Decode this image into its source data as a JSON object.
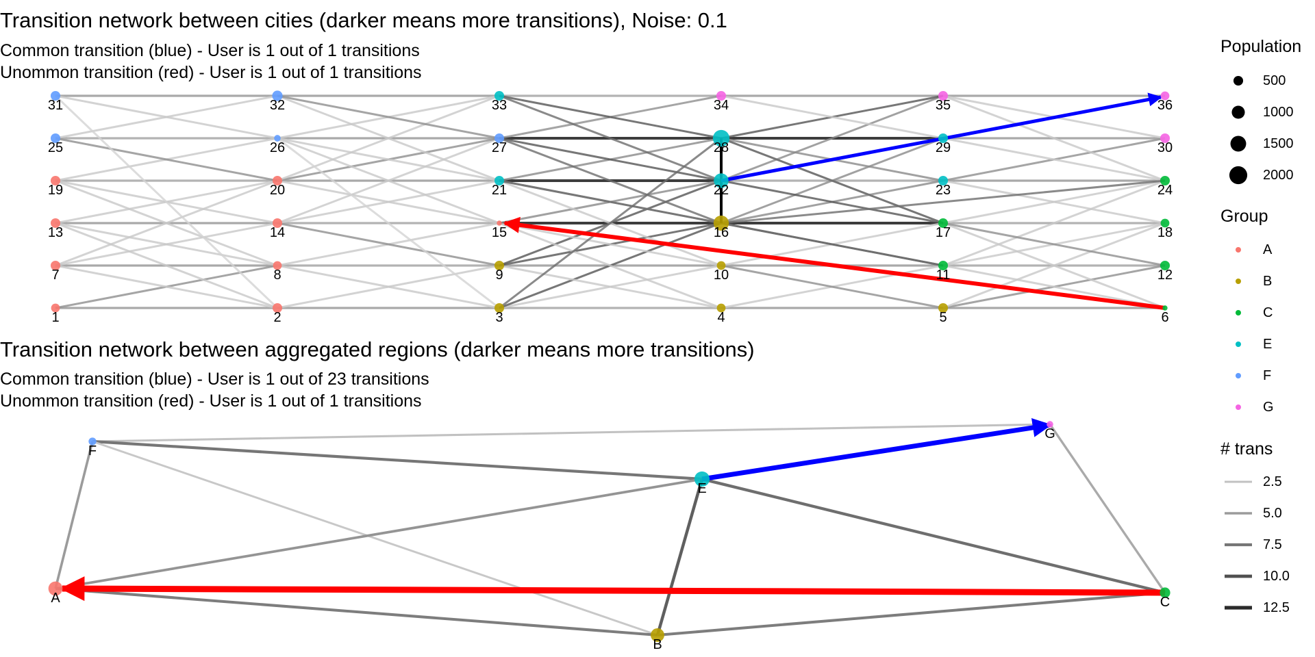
{
  "top": {
    "title": "Transition network between cities (darker means more transitions), Noise: 0.1",
    "subtitle_common": "Common transition (blue) - User is 1 out of 1 transitions",
    "subtitle_uncommon": "Unommon transition (red) - User is 1 out of 1 transitions"
  },
  "bottom": {
    "title": "Transition network between aggregated regions (darker means more transitions)",
    "subtitle_common": "Common transition (blue) - User is 1 out of 23 transitions",
    "subtitle_uncommon": "Unommon transition (red) - User is 1 out of 1 transitions"
  },
  "legend": {
    "population": {
      "title": "Population",
      "items": [
        "500",
        "1000",
        "1500",
        "2000"
      ],
      "sizes": [
        500,
        1000,
        1500,
        2000
      ]
    },
    "group": {
      "title": "Group",
      "items": [
        "A",
        "B",
        "C",
        "E",
        "F",
        "G"
      ]
    },
    "trans": {
      "title": "# trans",
      "items": [
        "2.5",
        "5.0",
        "7.5",
        "10.0",
        "12.5"
      ],
      "values": [
        2.5,
        5.0,
        7.5,
        10.0,
        12.5
      ]
    }
  },
  "colors": {
    "A": "#F8766D",
    "B": "#B79F00",
    "C": "#00BA38",
    "E": "#00BFC4",
    "F": "#619CFF",
    "G": "#F564E3",
    "common": "#0000FF",
    "uncommon": "#FF0000"
  },
  "city_network": {
    "cities": [
      {
        "id": "1",
        "group": "A",
        "pop": 400
      },
      {
        "id": "2",
        "group": "A",
        "pop": 500
      },
      {
        "id": "3",
        "group": "B",
        "pop": 500
      },
      {
        "id": "4",
        "group": "B",
        "pop": 400
      },
      {
        "id": "5",
        "group": "B",
        "pop": 500
      },
      {
        "id": "6",
        "group": "C",
        "pop": 100
      },
      {
        "id": "7",
        "group": "A",
        "pop": 500
      },
      {
        "id": "8",
        "group": "A",
        "pop": 400
      },
      {
        "id": "9",
        "group": "B",
        "pop": 500
      },
      {
        "id": "10",
        "group": "B",
        "pop": 400
      },
      {
        "id": "11",
        "group": "C",
        "pop": 500
      },
      {
        "id": "12",
        "group": "C",
        "pop": 500
      },
      {
        "id": "13",
        "group": "A",
        "pop": 500
      },
      {
        "id": "14",
        "group": "A",
        "pop": 500
      },
      {
        "id": "15",
        "group": "A",
        "pop": 100
      },
      {
        "id": "16",
        "group": "B",
        "pop": 1400
      },
      {
        "id": "17",
        "group": "C",
        "pop": 500
      },
      {
        "id": "18",
        "group": "C",
        "pop": 400
      },
      {
        "id": "19",
        "group": "A",
        "pop": 500
      },
      {
        "id": "20",
        "group": "A",
        "pop": 500
      },
      {
        "id": "21",
        "group": "E",
        "pop": 500
      },
      {
        "id": "22",
        "group": "E",
        "pop": 1300
      },
      {
        "id": "23",
        "group": "E",
        "pop": 500
      },
      {
        "id": "24",
        "group": "C",
        "pop": 500
      },
      {
        "id": "25",
        "group": "F",
        "pop": 500
      },
      {
        "id": "26",
        "group": "F",
        "pop": 200
      },
      {
        "id": "27",
        "group": "F",
        "pop": 500
      },
      {
        "id": "28",
        "group": "E",
        "pop": 1700
      },
      {
        "id": "29",
        "group": "E",
        "pop": 500
      },
      {
        "id": "30",
        "group": "G",
        "pop": 500
      },
      {
        "id": "31",
        "group": "F",
        "pop": 500
      },
      {
        "id": "32",
        "group": "F",
        "pop": 600
      },
      {
        "id": "33",
        "group": "E",
        "pop": 500
      },
      {
        "id": "34",
        "group": "G",
        "pop": 500
      },
      {
        "id": "35",
        "group": "G",
        "pop": 500
      },
      {
        "id": "36",
        "group": "G",
        "pop": 400
      }
    ],
    "highlight_common": {
      "from": "22",
      "to": "36"
    },
    "highlight_uncommon": {
      "from": "6",
      "to": "15"
    }
  },
  "region_network": {
    "regions": [
      {
        "id": "A",
        "group": "A",
        "pop": 1200
      },
      {
        "id": "B",
        "group": "B",
        "pop": 1100
      },
      {
        "id": "C",
        "group": "C",
        "pop": 600
      },
      {
        "id": "E",
        "group": "E",
        "pop": 1400
      },
      {
        "id": "F",
        "group": "F",
        "pop": 300
      },
      {
        "id": "G",
        "group": "G",
        "pop": 200
      }
    ],
    "edges": [
      {
        "from": "F",
        "to": "G",
        "trans": 2.5
      },
      {
        "from": "F",
        "to": "E",
        "trans": 7.5
      },
      {
        "from": "F",
        "to": "B",
        "trans": 2
      },
      {
        "from": "F",
        "to": "A",
        "trans": 5
      },
      {
        "from": "A",
        "to": "E",
        "trans": 5.5
      },
      {
        "from": "A",
        "to": "B",
        "trans": 7
      },
      {
        "from": "E",
        "to": "B",
        "trans": 9
      },
      {
        "from": "E",
        "to": "C",
        "trans": 8
      },
      {
        "from": "B",
        "to": "C",
        "trans": 7
      },
      {
        "from": "G",
        "to": "C",
        "trans": 4
      }
    ],
    "highlight_common": {
      "from": "E",
      "to": "G"
    },
    "highlight_uncommon": {
      "from": "C",
      "to": "A"
    }
  }
}
